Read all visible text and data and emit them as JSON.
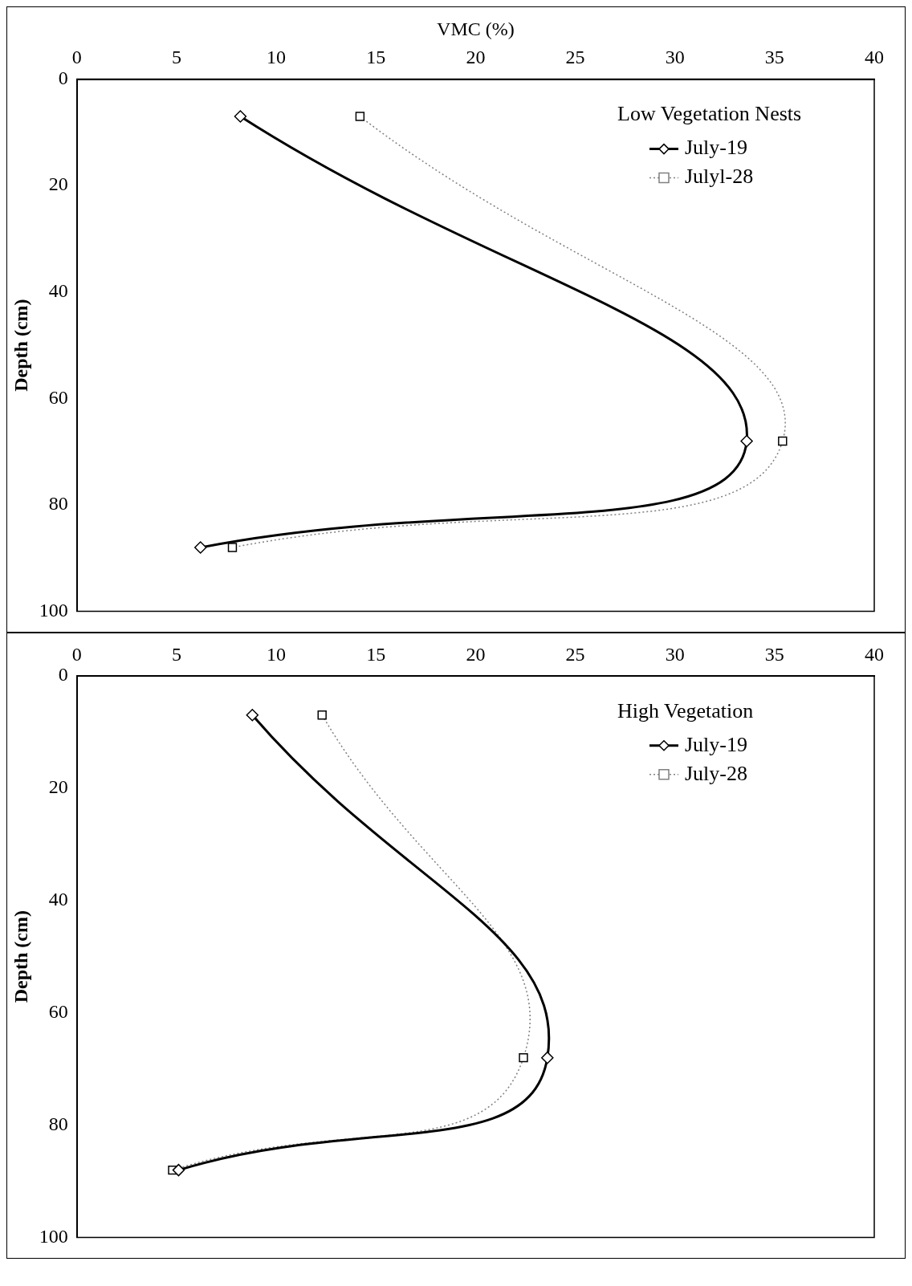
{
  "chart_data": [
    {
      "type": "line",
      "xlabel": "VMC (%)",
      "ylabel": "Depth (cm)",
      "xlim": [
        0,
        40
      ],
      "xticks": [
        0,
        5,
        10,
        15,
        20,
        25,
        30,
        35,
        40
      ],
      "ylim": [
        100,
        0
      ],
      "yticks": [
        0,
        20,
        40,
        60,
        80,
        100
      ],
      "grid": false,
      "legend": "top right",
      "legend_title": "Low Vegetation Nests",
      "series": [
        {
          "name": "July-19",
          "color": "#000000",
          "marker": "diamond",
          "line_style": "solid",
          "x": [
            8.2,
            33.6,
            6.2
          ],
          "values": [
            7,
            68,
            88
          ]
        },
        {
          "name": "Julyl-28",
          "color": "#808080",
          "marker": "square",
          "line_style": "dotted",
          "x": [
            14.2,
            35.4,
            7.8
          ],
          "values": [
            7,
            68,
            88
          ]
        }
      ]
    },
    {
      "type": "line",
      "ylabel": "Depth (cm)",
      "xlim": [
        0,
        40
      ],
      "xticks": [
        0,
        5,
        10,
        15,
        20,
        25,
        30,
        35,
        40
      ],
      "ylim": [
        100,
        0
      ],
      "yticks": [
        0,
        20,
        40,
        60,
        80,
        100
      ],
      "grid": false,
      "legend": "top right",
      "legend_title": "High Vegetation",
      "series": [
        {
          "name": "July-19",
          "color": "#000000",
          "marker": "diamond",
          "line_style": "solid",
          "x": [
            8.8,
            23.6,
            5.1
          ],
          "values": [
            7,
            68,
            88
          ]
        },
        {
          "name": "July-28",
          "color": "#808080",
          "marker": "square",
          "line_style": "dotted",
          "x": [
            12.3,
            22.4,
            4.8
          ],
          "values": [
            7,
            68,
            88
          ]
        }
      ]
    }
  ]
}
